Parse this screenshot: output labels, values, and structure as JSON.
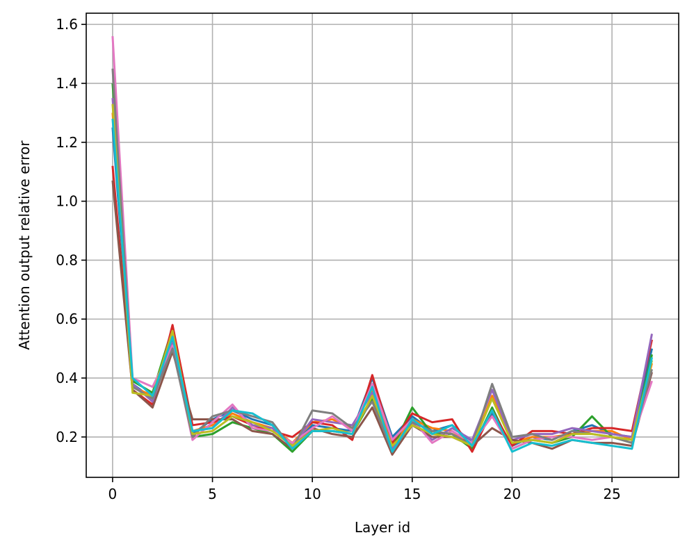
{
  "chart_data": {
    "type": "line",
    "xlabel": "Layer id",
    "ylabel": "Attention output relative error",
    "x": [
      0,
      1,
      2,
      3,
      4,
      5,
      6,
      7,
      8,
      9,
      10,
      11,
      12,
      13,
      14,
      15,
      16,
      17,
      18,
      19,
      20,
      21,
      22,
      23,
      24,
      25,
      26,
      27
    ],
    "series": [
      {
        "color": "#1f77b4",
        "values": [
          1.25,
          0.38,
          0.33,
          0.53,
          0.21,
          0.26,
          0.29,
          0.26,
          0.24,
          0.17,
          0.24,
          0.23,
          0.22,
          0.4,
          0.2,
          0.27,
          0.22,
          0.24,
          0.18,
          0.28,
          0.17,
          0.2,
          0.19,
          0.22,
          0.24,
          0.21,
          0.2,
          0.5
        ]
      },
      {
        "color": "#ff7f0e",
        "values": [
          1.3,
          0.37,
          0.34,
          0.55,
          0.22,
          0.24,
          0.28,
          0.25,
          0.23,
          0.18,
          0.25,
          0.26,
          0.23,
          0.36,
          0.17,
          0.26,
          0.23,
          0.22,
          0.17,
          0.34,
          0.18,
          0.2,
          0.2,
          0.21,
          0.22,
          0.22,
          0.19,
          0.45
        ]
      },
      {
        "color": "#2ca02c",
        "values": [
          1.4,
          0.39,
          0.35,
          0.57,
          0.2,
          0.21,
          0.25,
          0.23,
          0.21,
          0.15,
          0.22,
          0.22,
          0.21,
          0.33,
          0.16,
          0.3,
          0.21,
          0.21,
          0.16,
          0.3,
          0.16,
          0.19,
          0.18,
          0.2,
          0.27,
          0.2,
          0.18,
          0.48
        ]
      },
      {
        "color": "#d62728",
        "values": [
          1.12,
          0.36,
          0.31,
          0.58,
          0.24,
          0.25,
          0.27,
          0.24,
          0.22,
          0.2,
          0.25,
          0.24,
          0.19,
          0.41,
          0.18,
          0.28,
          0.25,
          0.26,
          0.15,
          0.29,
          0.17,
          0.22,
          0.22,
          0.21,
          0.23,
          0.23,
          0.22,
          0.53
        ]
      },
      {
        "color": "#9467bd",
        "values": [
          1.35,
          0.38,
          0.32,
          0.52,
          0.22,
          0.23,
          0.3,
          0.24,
          0.23,
          0.17,
          0.26,
          0.25,
          0.24,
          0.35,
          0.16,
          0.25,
          0.19,
          0.23,
          0.19,
          0.36,
          0.19,
          0.21,
          0.21,
          0.23,
          0.22,
          0.21,
          0.2,
          0.55
        ]
      },
      {
        "color": "#8c564b",
        "values": [
          1.07,
          0.36,
          0.3,
          0.49,
          0.26,
          0.26,
          0.26,
          0.22,
          0.21,
          0.16,
          0.23,
          0.21,
          0.2,
          0.3,
          0.14,
          0.24,
          0.2,
          0.2,
          0.17,
          0.23,
          0.19,
          0.18,
          0.16,
          0.19,
          0.18,
          0.18,
          0.17,
          0.42
        ]
      },
      {
        "color": "#e377c2",
        "values": [
          1.56,
          0.4,
          0.37,
          0.51,
          0.19,
          0.25,
          0.31,
          0.23,
          0.22,
          0.18,
          0.23,
          0.27,
          0.22,
          0.38,
          0.19,
          0.26,
          0.18,
          0.22,
          0.18,
          0.27,
          0.16,
          0.19,
          0.2,
          0.2,
          0.19,
          0.2,
          0.19,
          0.39
        ]
      },
      {
        "color": "#7f7f7f",
        "values": [
          1.45,
          0.37,
          0.33,
          0.5,
          0.2,
          0.27,
          0.29,
          0.27,
          0.25,
          0.16,
          0.29,
          0.28,
          0.23,
          0.32,
          0.15,
          0.25,
          0.22,
          0.21,
          0.17,
          0.38,
          0.2,
          0.21,
          0.19,
          0.22,
          0.21,
          0.2,
          0.18,
          0.43
        ]
      },
      {
        "color": "#bcbd22",
        "values": [
          1.33,
          0.35,
          0.34,
          0.56,
          0.21,
          0.22,
          0.27,
          0.25,
          0.22,
          0.17,
          0.22,
          0.23,
          0.21,
          0.34,
          0.17,
          0.24,
          0.21,
          0.2,
          0.17,
          0.33,
          0.18,
          0.19,
          0.18,
          0.21,
          0.21,
          0.2,
          0.19,
          0.46
        ]
      },
      {
        "color": "#17becf",
        "values": [
          1.28,
          0.4,
          0.34,
          0.54,
          0.22,
          0.23,
          0.29,
          0.28,
          0.24,
          0.16,
          0.22,
          0.22,
          0.21,
          0.37,
          0.15,
          0.26,
          0.21,
          0.24,
          0.17,
          0.29,
          0.15,
          0.18,
          0.17,
          0.19,
          0.18,
          0.17,
          0.16,
          0.47
        ]
      }
    ],
    "xlim": [
      -1.32,
      28.34
    ],
    "ylim": [
      0.063,
      1.638
    ],
    "xticks": [
      0,
      5,
      10,
      15,
      20,
      25
    ],
    "yticks": [
      0.2,
      0.4,
      0.6,
      0.8,
      {
        "value": 1,
        "label": "1.0"
      },
      1.2,
      1.4,
      1.6
    ],
    "grid": true
  }
}
